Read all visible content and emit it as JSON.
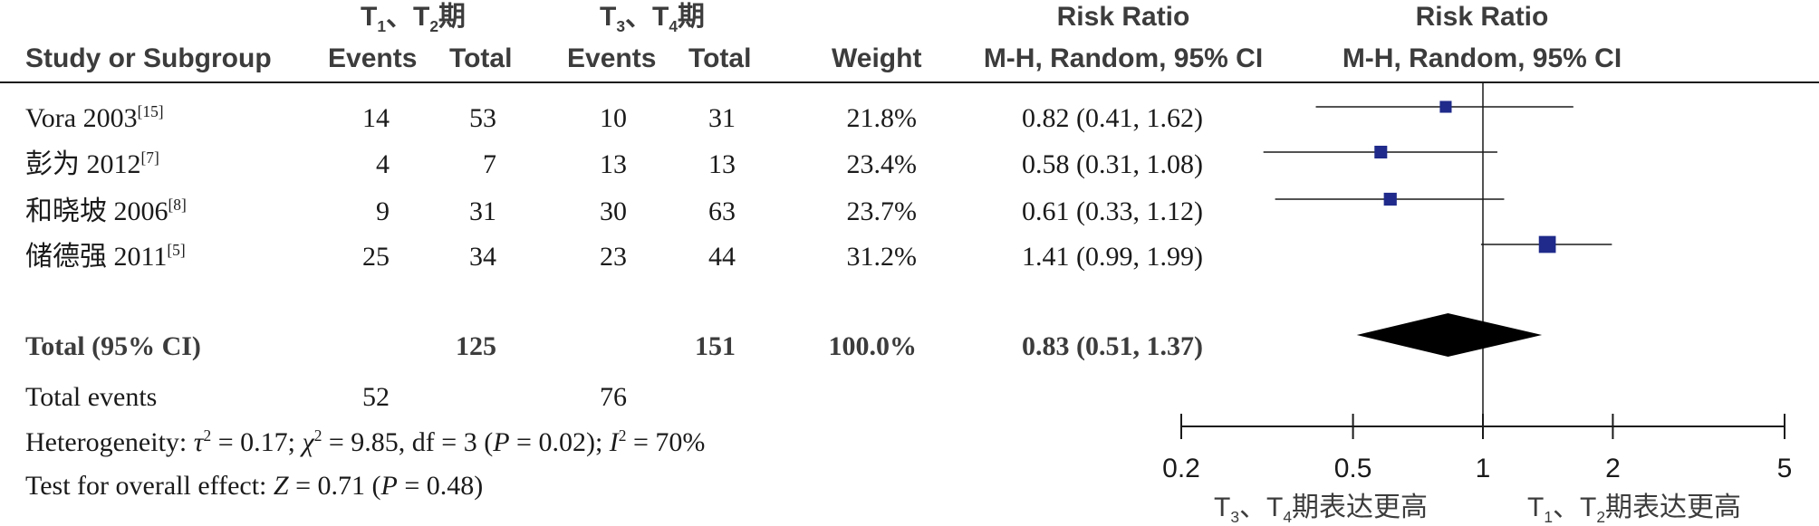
{
  "header": {
    "group1_name_parts": [
      "T",
      "1",
      "、T",
      "2",
      "期"
    ],
    "group2_name_parts": [
      "T",
      "3",
      "、T",
      "4",
      "期"
    ],
    "risk_ratio": "Risk Ratio",
    "study_col": "Study or Subgroup",
    "events": "Events",
    "total": "Total",
    "weight": "Weight",
    "method_ci": "M-H, Random, 95% CI"
  },
  "studies": [
    {
      "name": "Vora 2003",
      "ref": "[15]",
      "e1": "14",
      "t1": "53",
      "e2": "10",
      "t2": "31",
      "weight": "21.8%",
      "ci_text": "0.82 (0.41, 1.62)"
    },
    {
      "name": "彭为 2012",
      "ref": "[7]",
      "e1": "4",
      "t1": "7",
      "e2": "13",
      "t2": "13",
      "weight": "23.4%",
      "ci_text": "0.58 (0.31, 1.08)"
    },
    {
      "name": "和晓坡 2006",
      "ref": "[8]",
      "e1": "9",
      "t1": "31",
      "e2": "30",
      "t2": "63",
      "weight": "23.7%",
      "ci_text": "0.61 (0.33, 1.12)"
    },
    {
      "name": "储德强 2011",
      "ref": "[5]",
      "e1": "25",
      "t1": "34",
      "e2": "23",
      "t2": "44",
      "weight": "31.2%",
      "ci_text": "1.41 (0.99, 1.99)"
    }
  ],
  "total_row": {
    "label": "Total (95% CI)",
    "t1": "125",
    "t2": "151",
    "weight": "100.0%",
    "ci_text": "0.83 (0.51, 1.37)"
  },
  "total_events": {
    "label": "Total events",
    "e1": "52",
    "e2": "76"
  },
  "heterogeneity": {
    "prefix": "Heterogeneity: ",
    "tau_symbol": "τ",
    "tau_val": " = 0.17; ",
    "chi_symbol": "χ",
    "chi_val": " = 9.85, df = 3 (",
    "p_symbol": "P",
    "p_val": " = 0.02); ",
    "i_symbol": "I",
    "i_val": " = 70%",
    "sq": "2"
  },
  "overall_effect": {
    "prefix": "Test for overall effect: ",
    "z_symbol": "Z",
    "z_val": " = 0.71 (",
    "p_symbol": "P",
    "p_val": " = 0.48)"
  },
  "favours_left_parts": [
    "T",
    "3",
    "、T",
    "4",
    "期表达更高"
  ],
  "favours_right_parts": [
    "T",
    "1",
    "、T",
    "2",
    "期表达更高"
  ],
  "colors": {
    "marker": "#1f2a8a",
    "diamond": "#000000",
    "text": "#1a1a1a",
    "header": "#3c3c3c"
  },
  "chart_data": {
    "type": "forest",
    "x_scale": "log",
    "xlim": [
      0.2,
      5
    ],
    "ticks": [
      0.2,
      0.5,
      1,
      2,
      5
    ],
    "tick_labels": [
      "0.2",
      "0.5",
      "1",
      "2",
      "5"
    ],
    "reference_line": 1,
    "series": [
      {
        "study": "Vora 2003",
        "rr": 0.82,
        "lower": 0.41,
        "upper": 1.62,
        "weight": 21.8
      },
      {
        "study": "彭为 2012",
        "rr": 0.58,
        "lower": 0.31,
        "upper": 1.08,
        "weight": 23.4
      },
      {
        "study": "和晓坡 2006",
        "rr": 0.61,
        "lower": 0.33,
        "upper": 1.12,
        "weight": 23.7
      },
      {
        "study": "储德强 2011",
        "rr": 1.41,
        "lower": 0.99,
        "upper": 1.99,
        "weight": 31.2
      }
    ],
    "pooled": {
      "rr": 0.83,
      "lower": 0.51,
      "upper": 1.37
    }
  }
}
